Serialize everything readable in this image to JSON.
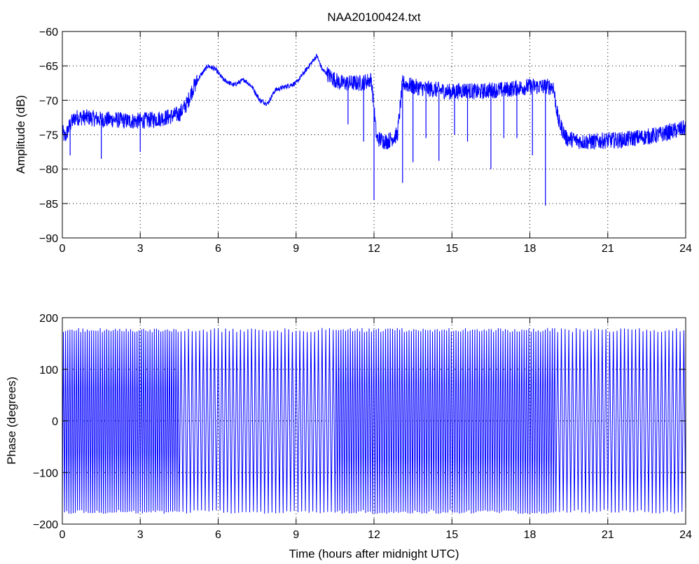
{
  "chart_data": [
    {
      "type": "line",
      "title": "NAA20100424.txt",
      "xlabel": "",
      "ylabel": "Amplitude (dB)",
      "xlim": [
        0,
        24
      ],
      "ylim": [
        -90,
        -60
      ],
      "xticks": [
        0,
        3,
        6,
        9,
        12,
        15,
        18,
        21,
        24
      ],
      "yticks": [
        -60,
        -65,
        -70,
        -75,
        -80,
        -85,
        -90
      ],
      "xtick_labels": [
        "0",
        "3",
        "6",
        "9",
        "12",
        "15",
        "18",
        "21",
        "24"
      ],
      "ytick_labels": [
        "−60",
        "−65",
        "−70",
        "−75",
        "−80",
        "−85",
        "−90"
      ],
      "grid": true,
      "line_color": "#0000ff",
      "x": [
        0,
        0.1,
        0.3,
        0.5,
        1.0,
        1.5,
        2.0,
        2.5,
        3.0,
        3.5,
        4.0,
        4.5,
        4.8,
        5.0,
        5.3,
        5.6,
        5.9,
        6.2,
        6.6,
        7.0,
        7.3,
        7.6,
        7.9,
        8.2,
        8.6,
        9.0,
        9.3,
        9.6,
        9.8,
        10.0,
        10.3,
        10.7,
        11.0,
        11.5,
        11.9,
        12.1,
        12.5,
        12.9,
        13.1,
        13.5,
        14.0,
        14.5,
        15.0,
        15.5,
        16.0,
        16.5,
        17.0,
        17.5,
        18.0,
        18.5,
        18.9,
        19.1,
        19.4,
        20.0,
        20.5,
        21.0,
        21.5,
        22.0,
        22.5,
        23.0,
        23.5,
        24.0
      ],
      "y": [
        -74.5,
        -75.5,
        -73.5,
        -72.5,
        -72.5,
        -72.8,
        -72.8,
        -73.0,
        -73.0,
        -72.8,
        -72.5,
        -72.0,
        -70.5,
        -68.5,
        -66.5,
        -65.0,
        -65.5,
        -67.0,
        -67.8,
        -67.0,
        -68.0,
        -70.0,
        -70.5,
        -68.5,
        -68.0,
        -67.5,
        -66.0,
        -64.5,
        -63.5,
        -65.5,
        -66.5,
        -67.5,
        -67.5,
        -67.5,
        -67.0,
        -75.5,
        -76.0,
        -75.0,
        -67.5,
        -68.0,
        -68.3,
        -68.5,
        -68.8,
        -68.5,
        -68.8,
        -68.5,
        -68.5,
        -68.2,
        -68.0,
        -68.0,
        -68.0,
        -73.0,
        -75.5,
        -76.0,
        -76.0,
        -75.8,
        -75.8,
        -75.5,
        -75.3,
        -75.0,
        -74.5,
        -74.0
      ],
      "spikes": [
        {
          "x": 1.5,
          "y": -78.5
        },
        {
          "x": 3.0,
          "y": -77.5
        },
        {
          "x": 11.0,
          "y": -73.5
        },
        {
          "x": 11.6,
          "y": -76.0
        },
        {
          "x": 12.0,
          "y": -84.5
        },
        {
          "x": 13.1,
          "y": -82.0
        },
        {
          "x": 13.5,
          "y": -79.0
        },
        {
          "x": 14.0,
          "y": -75.5
        },
        {
          "x": 14.5,
          "y": -78.8
        },
        {
          "x": 15.1,
          "y": -75.0
        },
        {
          "x": 15.6,
          "y": -76.0
        },
        {
          "x": 16.5,
          "y": -80.0
        },
        {
          "x": 17.0,
          "y": -75.5
        },
        {
          "x": 17.5,
          "y": -75.5
        },
        {
          "x": 18.1,
          "y": -78.0
        },
        {
          "x": 18.6,
          "y": -85.3
        },
        {
          "x": 0.3,
          "y": -78.0
        }
      ]
    },
    {
      "type": "line",
      "title": "",
      "xlabel": "Time (hours after midnight UTC)",
      "ylabel": "Phase (degrees)",
      "xlim": [
        0,
        24
      ],
      "ylim": [
        -200,
        200
      ],
      "xticks": [
        0,
        3,
        6,
        9,
        12,
        15,
        18,
        21,
        24
      ],
      "yticks": [
        200,
        100,
        0,
        -100,
        -200
      ],
      "xtick_labels": [
        "0",
        "3",
        "6",
        "9",
        "12",
        "15",
        "18",
        "21",
        "24"
      ],
      "ytick_labels": [
        "200",
        "100",
        "0",
        "−100",
        "−200"
      ],
      "grid": true,
      "line_color": "#0000ff",
      "ylim_data": [
        -180,
        180
      ],
      "wrap_segments": [
        {
          "x0": 0,
          "x1": 4.5,
          "cycles_per_hour": 12
        },
        {
          "x0": 4.5,
          "x1": 10.5,
          "cycles_per_hour": 7
        },
        {
          "x0": 10.5,
          "x1": 19.0,
          "cycles_per_hour": 11
        },
        {
          "x0": 19.0,
          "x1": 24.0,
          "cycles_per_hour": 7
        }
      ]
    }
  ]
}
